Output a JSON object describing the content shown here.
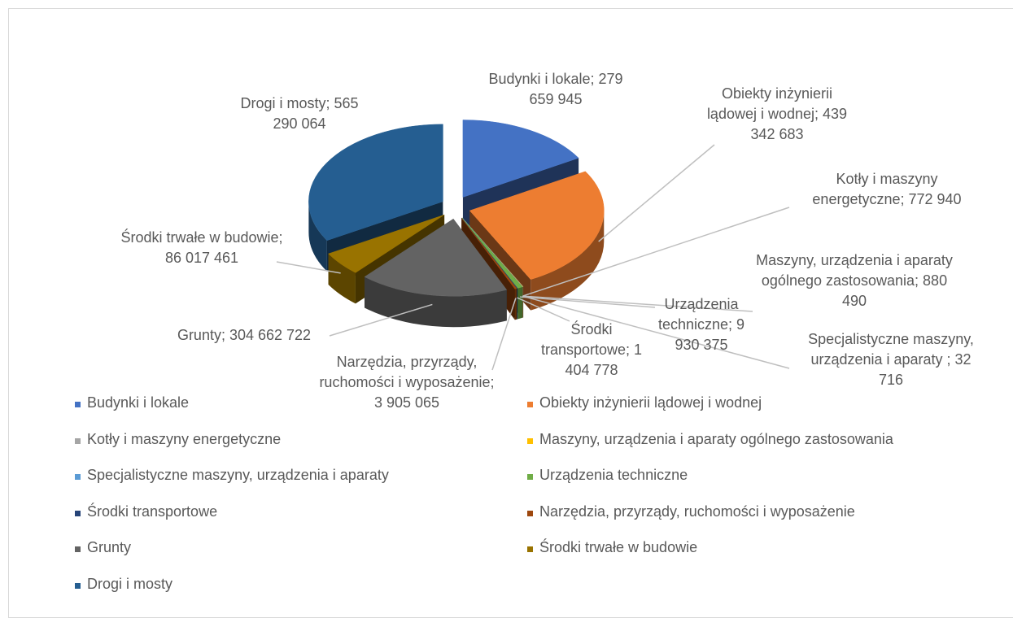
{
  "chart_data": {
    "type": "pie3d",
    "categories": [
      "Budynki i lokale",
      "Obiekty inżynierii lądowej i wodnej",
      "Kotły i maszyny energetyczne",
      "Maszyny, urządzenia i aparaty ogólnego zastosowania",
      "Specjalistyczne maszyny, urządzenia i aparaty",
      "Urządzenia techniczne",
      "Środki transportowe",
      "Narzędzia, przyrządy, ruchomości i wyposażenie",
      "Grunty",
      "Środki trwałe w budowie",
      "Drogi i mosty"
    ],
    "values": [
      279659945,
      439342683,
      772940,
      880490,
      32716,
      9930375,
      1404778,
      3905065,
      304662722,
      86017461,
      565290064
    ],
    "value_labels": [
      "Budynki i lokale; 279 659 945",
      "Obiekty inżynierii lądowej i wodnej; 439 342 683",
      "Kotły i maszyny energetyczne; 772 940",
      "Maszyny, urządzenia i aparaty ogólnego zastosowania; 880 490",
      "Specjalistyczne maszyny, urządzenia i aparaty ; 32 716",
      "Urządzenia techniczne; 9 930 375",
      "Środki transportowe; 1 404 778",
      "Narzędzia, przyrządy, ruchomości i wyposażenie; 3 905 065",
      "Grunty; 304 662 722",
      "Środki trwałe w budowie; 86 017 461",
      "Drogi i mosty; 565 290 064"
    ],
    "colors": [
      "#4472c4",
      "#ed7d31",
      "#a5a5a5",
      "#ffc000",
      "#5b9bd5",
      "#70ad47",
      "#264478",
      "#9e480e",
      "#636363",
      "#997300",
      "#255e91"
    ],
    "legend": "bottom"
  }
}
